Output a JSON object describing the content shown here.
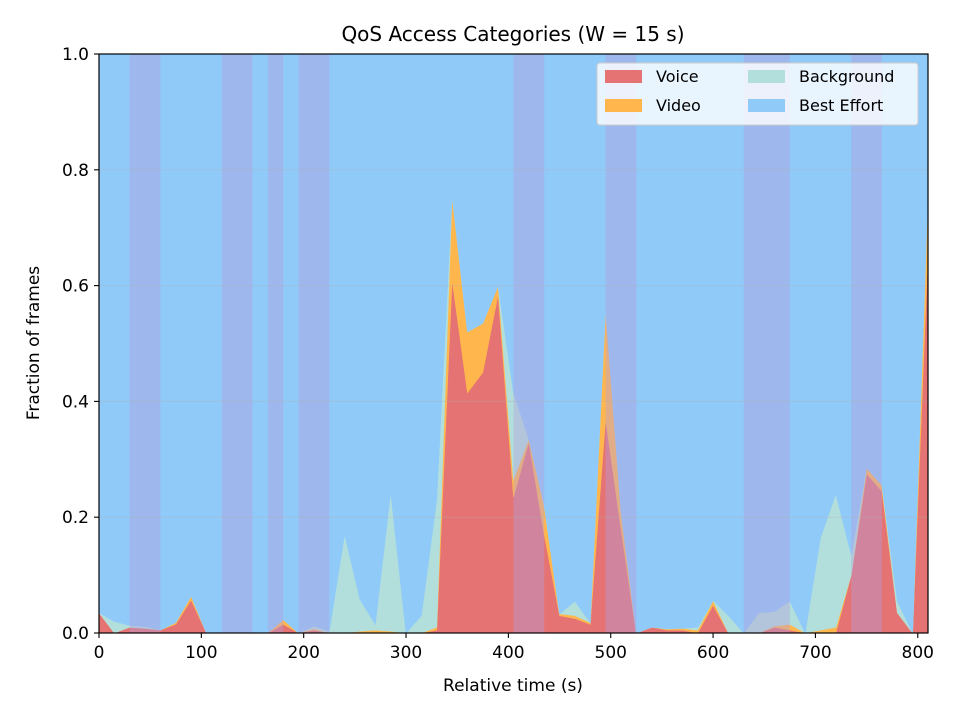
{
  "chart_data": {
    "type": "area",
    "stacked": true,
    "title": "QoS Access Categories (W = 15 s)",
    "xlabel": "Relative time (s)",
    "ylabel": "Fraction of frames",
    "xlim": [
      0,
      810
    ],
    "ylim": [
      0,
      1
    ],
    "xticks": [
      0,
      100,
      200,
      300,
      400,
      500,
      600,
      700,
      800
    ],
    "yticks": [
      0.0,
      0.2,
      0.4,
      0.6,
      0.8,
      1.0
    ],
    "xtick_labels": [
      "0",
      "100",
      "200",
      "300",
      "400",
      "500",
      "600",
      "700",
      "800"
    ],
    "ytick_labels": [
      "0.0",
      "0.2",
      "0.4",
      "0.6",
      "0.8",
      "1.0"
    ],
    "grid": "horizontal",
    "legend_position": "top-right",
    "x": [
      0,
      15,
      30,
      45,
      60,
      75,
      90,
      105,
      120,
      135,
      150,
      165,
      180,
      195,
      210,
      225,
      240,
      255,
      270,
      285,
      300,
      315,
      330,
      345,
      360,
      375,
      390,
      405,
      420,
      435,
      450,
      465,
      480,
      495,
      510,
      525,
      540,
      555,
      570,
      585,
      600,
      615,
      630,
      645,
      660,
      675,
      690,
      705,
      720,
      735,
      750,
      765,
      780,
      795,
      810
    ],
    "series": [
      {
        "name": "Voice",
        "color": "#e57373",
        "values": [
          0.035,
          0.0,
          0.01,
          0.008,
          0.005,
          0.015,
          0.057,
          0.0,
          0.0,
          0.0,
          0.0,
          0.0,
          0.015,
          0.0,
          0.005,
          0.0,
          0.0,
          0.0,
          0.0,
          0.0,
          0.0,
          0.0,
          0.005,
          0.61,
          0.415,
          0.45,
          0.585,
          0.235,
          0.33,
          0.17,
          0.03,
          0.025,
          0.015,
          0.37,
          0.18,
          0.0,
          0.01,
          0.005,
          0.005,
          0.0,
          0.048,
          0.0,
          0.0,
          0.0,
          0.01,
          0.005,
          0.0,
          0.0,
          0.0,
          0.1,
          0.275,
          0.245,
          0.035,
          0.0,
          0.66
        ]
      },
      {
        "name": "Video",
        "color": "#ffb74d",
        "values": [
          0.0,
          0.0,
          0.0,
          0.0,
          0.0,
          0.003,
          0.007,
          0.0,
          0.0,
          0.0,
          0.0,
          0.0,
          0.008,
          0.0,
          0.002,
          0.0,
          0.0,
          0.003,
          0.005,
          0.003,
          0.0,
          0.0,
          0.005,
          0.145,
          0.105,
          0.085,
          0.015,
          0.03,
          0.005,
          0.05,
          0.003,
          0.005,
          0.003,
          0.19,
          0.03,
          0.0,
          0.0,
          0.002,
          0.003,
          0.005,
          0.008,
          0.0,
          0.0,
          0.0,
          0.002,
          0.01,
          0.0,
          0.005,
          0.01,
          0.0,
          0.01,
          0.01,
          0.0,
          0.0,
          0.1
        ]
      },
      {
        "name": "Background",
        "color": "#b2dfdb",
        "values": [
          0.0,
          0.02,
          0.003,
          0.003,
          0.0,
          0.0,
          0.0,
          0.0,
          0.0,
          0.0,
          0.0,
          0.0,
          0.0,
          0.0,
          0.005,
          0.003,
          0.17,
          0.055,
          0.01,
          0.24,
          0.0,
          0.03,
          0.22,
          0.0,
          0.0,
          0.0,
          0.0,
          0.15,
          0.0,
          0.0,
          0.0,
          0.025,
          0.0,
          0.0,
          0.0,
          0.0,
          0.0,
          0.0,
          0.0,
          0.005,
          0.0,
          0.03,
          0.0,
          0.035,
          0.025,
          0.04,
          0.0,
          0.16,
          0.23,
          0.035,
          0.0,
          0.0,
          0.02,
          0.0,
          0.0
        ]
      },
      {
        "name": "Best Effort",
        "color": "#90caf9",
        "values": [
          0.965,
          0.98,
          0.987,
          0.989,
          0.995,
          0.982,
          0.936,
          1.0,
          1.0,
          1.0,
          1.0,
          1.0,
          0.977,
          1.0,
          0.988,
          0.997,
          0.83,
          0.942,
          0.985,
          0.757,
          1.0,
          0.97,
          0.77,
          0.245,
          0.48,
          0.465,
          0.4,
          0.585,
          0.665,
          0.78,
          0.967,
          0.945,
          0.982,
          0.44,
          0.79,
          1.0,
          0.99,
          0.993,
          0.992,
          0.99,
          0.944,
          0.97,
          1.0,
          0.965,
          0.963,
          0.945,
          1.0,
          0.835,
          0.76,
          0.865,
          0.715,
          0.745,
          0.945,
          1.0,
          0.24
        ]
      }
    ],
    "shaded_bands": [
      [
        30,
        60
      ],
      [
        120,
        150
      ],
      [
        165,
        180
      ],
      [
        195,
        225
      ],
      [
        405,
        435
      ],
      [
        495,
        525
      ],
      [
        630,
        675
      ],
      [
        735,
        765
      ]
    ]
  }
}
